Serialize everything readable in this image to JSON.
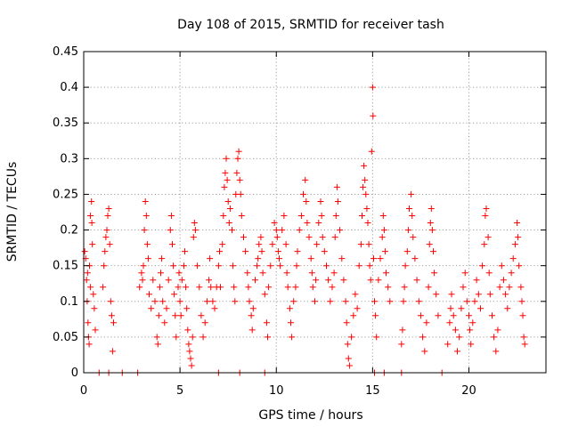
{
  "chart_data": {
    "type": "scatter",
    "title": "Day 108 of 2015, SRMTID for receiver tash",
    "xlabel": "GPS time / hours",
    "ylabel": "SRMTID / TECUs",
    "xlim": [
      0,
      24
    ],
    "ylim": [
      0,
      0.45
    ],
    "xticks": [
      0,
      5,
      10,
      15,
      20
    ],
    "yticks": [
      0,
      0.05,
      0.1,
      0.15,
      0.2,
      0.25,
      0.3,
      0.35,
      0.4,
      0.45
    ],
    "xtick_labels": [
      "0",
      "5",
      "10",
      "15",
      "20"
    ],
    "ytick_labels": [
      "0",
      "0.05",
      "0.1",
      "0.15",
      "0.2",
      "0.25",
      "0.3",
      "0.35",
      "0.4",
      "0.45"
    ],
    "grid": true,
    "marker": "+",
    "color": "#ff0000",
    "series": [
      {
        "name": "SRMTID",
        "points": [
          [
            0.05,
            0.17
          ],
          [
            0.1,
            0.16
          ],
          [
            0.15,
            0.13
          ],
          [
            0.18,
            0.1
          ],
          [
            0.22,
            0.07
          ],
          [
            0.25,
            0.05
          ],
          [
            0.3,
            0.15
          ],
          [
            0.35,
            0.22
          ],
          [
            0.4,
            0.24
          ],
          [
            0.42,
            0.21
          ],
          [
            0.45,
            0.18
          ],
          [
            0.5,
            0.11
          ],
          [
            0.55,
            0.09
          ],
          [
            0.6,
            0.06
          ],
          [
            0.28,
            0.04
          ],
          [
            0.35,
            0.12
          ],
          [
            0.2,
            0.14
          ],
          [
            1.0,
            0.12
          ],
          [
            1.05,
            0.15
          ],
          [
            1.1,
            0.17
          ],
          [
            1.15,
            0.19
          ],
          [
            1.2,
            0.2
          ],
          [
            1.25,
            0.22
          ],
          [
            1.3,
            0.23
          ],
          [
            1.35,
            0.18
          ],
          [
            1.4,
            0.1
          ],
          [
            1.45,
            0.08
          ],
          [
            1.5,
            0.03
          ],
          [
            1.55,
            0.07
          ],
          [
            2.9,
            0.12
          ],
          [
            3.0,
            0.14
          ],
          [
            3.05,
            0.13
          ],
          [
            3.1,
            0.15
          ],
          [
            3.15,
            0.2
          ],
          [
            3.2,
            0.24
          ],
          [
            3.25,
            0.22
          ],
          [
            3.3,
            0.18
          ],
          [
            3.35,
            0.16
          ],
          [
            3.4,
            0.11
          ],
          [
            3.5,
            0.09
          ],
          [
            3.6,
            0.13
          ],
          [
            3.7,
            0.1
          ],
          [
            3.8,
            0.05
          ],
          [
            3.85,
            0.04
          ],
          [
            3.9,
            0.08
          ],
          [
            3.95,
            0.12
          ],
          [
            4.0,
            0.14
          ],
          [
            4.05,
            0.16
          ],
          [
            4.1,
            0.1
          ],
          [
            4.2,
            0.07
          ],
          [
            4.3,
            0.09
          ],
          [
            4.4,
            0.13
          ],
          [
            4.5,
            0.2
          ],
          [
            4.55,
            0.22
          ],
          [
            4.6,
            0.18
          ],
          [
            4.65,
            0.15
          ],
          [
            4.7,
            0.11
          ],
          [
            4.75,
            0.08
          ],
          [
            4.8,
            0.05
          ],
          [
            4.9,
            0.12
          ],
          [
            4.95,
            0.14
          ],
          [
            5.0,
            0.1
          ],
          [
            5.05,
            0.08
          ],
          [
            5.1,
            0.13
          ],
          [
            5.2,
            0.15
          ],
          [
            5.25,
            0.17
          ],
          [
            5.3,
            0.12
          ],
          [
            5.35,
            0.09
          ],
          [
            5.4,
            0.06
          ],
          [
            5.45,
            0.04
          ],
          [
            5.5,
            0.03
          ],
          [
            5.55,
            0.02
          ],
          [
            5.6,
            0.01
          ],
          [
            5.65,
            0.05
          ],
          [
            5.7,
            0.19
          ],
          [
            5.75,
            0.21
          ],
          [
            5.8,
            0.2
          ],
          [
            5.9,
            0.15
          ],
          [
            6.0,
            0.12
          ],
          [
            6.1,
            0.08
          ],
          [
            6.2,
            0.05
          ],
          [
            6.3,
            0.07
          ],
          [
            6.4,
            0.1
          ],
          [
            6.5,
            0.13
          ],
          [
            6.55,
            0.16
          ],
          [
            6.6,
            0.12
          ],
          [
            6.7,
            0.1
          ],
          [
            6.8,
            0.09
          ],
          [
            6.9,
            0.12
          ],
          [
            7.0,
            0.15
          ],
          [
            7.05,
            0.17
          ],
          [
            7.1,
            0.12
          ],
          [
            7.2,
            0.18
          ],
          [
            7.25,
            0.22
          ],
          [
            7.3,
            0.26
          ],
          [
            7.35,
            0.28
          ],
          [
            7.4,
            0.3
          ],
          [
            7.45,
            0.27
          ],
          [
            7.5,
            0.24
          ],
          [
            7.55,
            0.21
          ],
          [
            7.6,
            0.23
          ],
          [
            7.7,
            0.2
          ],
          [
            7.75,
            0.15
          ],
          [
            7.8,
            0.12
          ],
          [
            7.85,
            0.1
          ],
          [
            7.9,
            0.25
          ],
          [
            7.95,
            0.28
          ],
          [
            8.0,
            0.3
          ],
          [
            8.05,
            0.31
          ],
          [
            8.1,
            0.27
          ],
          [
            8.15,
            0.25
          ],
          [
            8.2,
            0.22
          ],
          [
            8.3,
            0.19
          ],
          [
            8.4,
            0.17
          ],
          [
            8.5,
            0.14
          ],
          [
            8.55,
            0.12
          ],
          [
            8.6,
            0.1
          ],
          [
            8.7,
            0.08
          ],
          [
            8.75,
            0.06
          ],
          [
            8.8,
            0.09
          ],
          [
            8.9,
            0.13
          ],
          [
            9.0,
            0.15
          ],
          [
            9.05,
            0.16
          ],
          [
            9.1,
            0.18
          ],
          [
            9.2,
            0.19
          ],
          [
            9.25,
            0.17
          ],
          [
            9.3,
            0.14
          ],
          [
            9.4,
            0.11
          ],
          [
            9.5,
            0.07
          ],
          [
            9.55,
            0.05
          ],
          [
            9.6,
            0.12
          ],
          [
            9.7,
            0.15
          ],
          [
            9.8,
            0.18
          ],
          [
            9.9,
            0.21
          ],
          [
            10.0,
            0.2
          ],
          [
            10.05,
            0.19
          ],
          [
            10.1,
            0.17
          ],
          [
            10.15,
            0.16
          ],
          [
            10.2,
            0.15
          ],
          [
            10.3,
            0.2
          ],
          [
            10.4,
            0.22
          ],
          [
            10.5,
            0.18
          ],
          [
            10.55,
            0.14
          ],
          [
            10.6,
            0.12
          ],
          [
            10.7,
            0.09
          ],
          [
            10.75,
            0.07
          ],
          [
            10.8,
            0.05
          ],
          [
            10.9,
            0.1
          ],
          [
            11.0,
            0.12
          ],
          [
            11.05,
            0.15
          ],
          [
            11.1,
            0.17
          ],
          [
            11.2,
            0.2
          ],
          [
            11.3,
            0.22
          ],
          [
            11.4,
            0.25
          ],
          [
            11.5,
            0.27
          ],
          [
            11.55,
            0.24
          ],
          [
            11.6,
            0.21
          ],
          [
            11.7,
            0.19
          ],
          [
            11.8,
            0.16
          ],
          [
            11.85,
            0.14
          ],
          [
            11.9,
            0.12
          ],
          [
            12.0,
            0.1
          ],
          [
            12.05,
            0.13
          ],
          [
            12.1,
            0.18
          ],
          [
            12.2,
            0.21
          ],
          [
            12.3,
            0.24
          ],
          [
            12.35,
            0.22
          ],
          [
            12.4,
            0.19
          ],
          [
            12.5,
            0.17
          ],
          [
            12.6,
            0.15
          ],
          [
            12.7,
            0.13
          ],
          [
            12.8,
            0.1
          ],
          [
            12.9,
            0.12
          ],
          [
            13.0,
            0.14
          ],
          [
            13.05,
            0.19
          ],
          [
            13.1,
            0.22
          ],
          [
            13.15,
            0.26
          ],
          [
            13.2,
            0.24
          ],
          [
            13.3,
            0.2
          ],
          [
            13.4,
            0.16
          ],
          [
            13.5,
            0.13
          ],
          [
            13.6,
            0.1
          ],
          [
            13.65,
            0.07
          ],
          [
            13.7,
            0.04
          ],
          [
            13.75,
            0.02
          ],
          [
            13.8,
            0.01
          ],
          [
            13.9,
            0.05
          ],
          [
            14.0,
            0.08
          ],
          [
            14.1,
            0.11
          ],
          [
            14.2,
            0.09
          ],
          [
            14.3,
            0.15
          ],
          [
            14.4,
            0.18
          ],
          [
            14.45,
            0.22
          ],
          [
            14.5,
            0.26
          ],
          [
            14.55,
            0.29
          ],
          [
            14.6,
            0.27
          ],
          [
            14.65,
            0.25
          ],
          [
            14.7,
            0.23
          ],
          [
            14.75,
            0.21
          ],
          [
            14.8,
            0.18
          ],
          [
            14.85,
            0.15
          ],
          [
            14.9,
            0.13
          ],
          [
            14.95,
            0.31
          ],
          [
            15.0,
            0.4
          ],
          [
            15.02,
            0.36
          ],
          [
            15.05,
            0.16
          ],
          [
            15.1,
            0.1
          ],
          [
            15.15,
            0.08
          ],
          [
            15.2,
            0.05
          ],
          [
            15.3,
            0.13
          ],
          [
            15.4,
            0.16
          ],
          [
            15.5,
            0.19
          ],
          [
            15.55,
            0.22
          ],
          [
            15.6,
            0.2
          ],
          [
            15.65,
            0.17
          ],
          [
            15.7,
            0.14
          ],
          [
            15.8,
            0.12
          ],
          [
            15.9,
            0.1
          ],
          [
            16.5,
            0.04
          ],
          [
            16.55,
            0.06
          ],
          [
            16.6,
            0.1
          ],
          [
            16.65,
            0.12
          ],
          [
            16.7,
            0.15
          ],
          [
            16.8,
            0.17
          ],
          [
            16.85,
            0.2
          ],
          [
            16.9,
            0.23
          ],
          [
            17.0,
            0.25
          ],
          [
            17.05,
            0.22
          ],
          [
            17.1,
            0.19
          ],
          [
            17.2,
            0.16
          ],
          [
            17.3,
            0.13
          ],
          [
            17.4,
            0.1
          ],
          [
            17.5,
            0.08
          ],
          [
            17.6,
            0.05
          ],
          [
            17.7,
            0.03
          ],
          [
            17.8,
            0.07
          ],
          [
            17.9,
            0.12
          ],
          [
            17.95,
            0.18
          ],
          [
            18.0,
            0.21
          ],
          [
            18.05,
            0.23
          ],
          [
            18.1,
            0.2
          ],
          [
            18.15,
            0.17
          ],
          [
            18.2,
            0.14
          ],
          [
            18.3,
            0.11
          ],
          [
            18.4,
            0.08
          ],
          [
            18.9,
            0.04
          ],
          [
            19.0,
            0.07
          ],
          [
            19.05,
            0.09
          ],
          [
            19.1,
            0.11
          ],
          [
            19.2,
            0.08
          ],
          [
            19.3,
            0.06
          ],
          [
            19.4,
            0.03
          ],
          [
            19.5,
            0.05
          ],
          [
            19.6,
            0.09
          ],
          [
            19.7,
            0.12
          ],
          [
            19.8,
            0.14
          ],
          [
            19.9,
            0.1
          ],
          [
            20.0,
            0.08
          ],
          [
            20.05,
            0.06
          ],
          [
            20.1,
            0.04
          ],
          [
            20.2,
            0.07
          ],
          [
            20.3,
            0.1
          ],
          [
            20.4,
            0.13
          ],
          [
            20.5,
            0.11
          ],
          [
            20.6,
            0.09
          ],
          [
            20.7,
            0.15
          ],
          [
            20.8,
            0.18
          ],
          [
            20.85,
            0.22
          ],
          [
            20.9,
            0.23
          ],
          [
            21.0,
            0.19
          ],
          [
            21.05,
            0.14
          ],
          [
            21.1,
            0.11
          ],
          [
            21.2,
            0.08
          ],
          [
            21.3,
            0.05
          ],
          [
            21.4,
            0.03
          ],
          [
            21.5,
            0.06
          ],
          [
            21.6,
            0.12
          ],
          [
            21.7,
            0.15
          ],
          [
            21.8,
            0.13
          ],
          [
            21.9,
            0.11
          ],
          [
            22.0,
            0.09
          ],
          [
            22.1,
            0.12
          ],
          [
            22.2,
            0.14
          ],
          [
            22.3,
            0.16
          ],
          [
            22.4,
            0.18
          ],
          [
            22.5,
            0.21
          ],
          [
            22.55,
            0.19
          ],
          [
            22.6,
            0.15
          ],
          [
            22.7,
            0.12
          ],
          [
            22.75,
            0.1
          ],
          [
            22.8,
            0.08
          ],
          [
            22.85,
            0.05
          ],
          [
            22.9,
            0.04
          ],
          [
            0.8,
            0.0
          ],
          [
            1.3,
            0.0
          ],
          [
            2.0,
            0.0
          ],
          [
            2.8,
            0.0
          ],
          [
            7.0,
            0.0
          ],
          [
            8.1,
            0.0
          ],
          [
            9.4,
            0.0
          ],
          [
            15.1,
            0.0
          ],
          [
            15.6,
            0.0
          ],
          [
            16.5,
            0.0
          ],
          [
            18.6,
            0.0
          ]
        ]
      }
    ]
  }
}
